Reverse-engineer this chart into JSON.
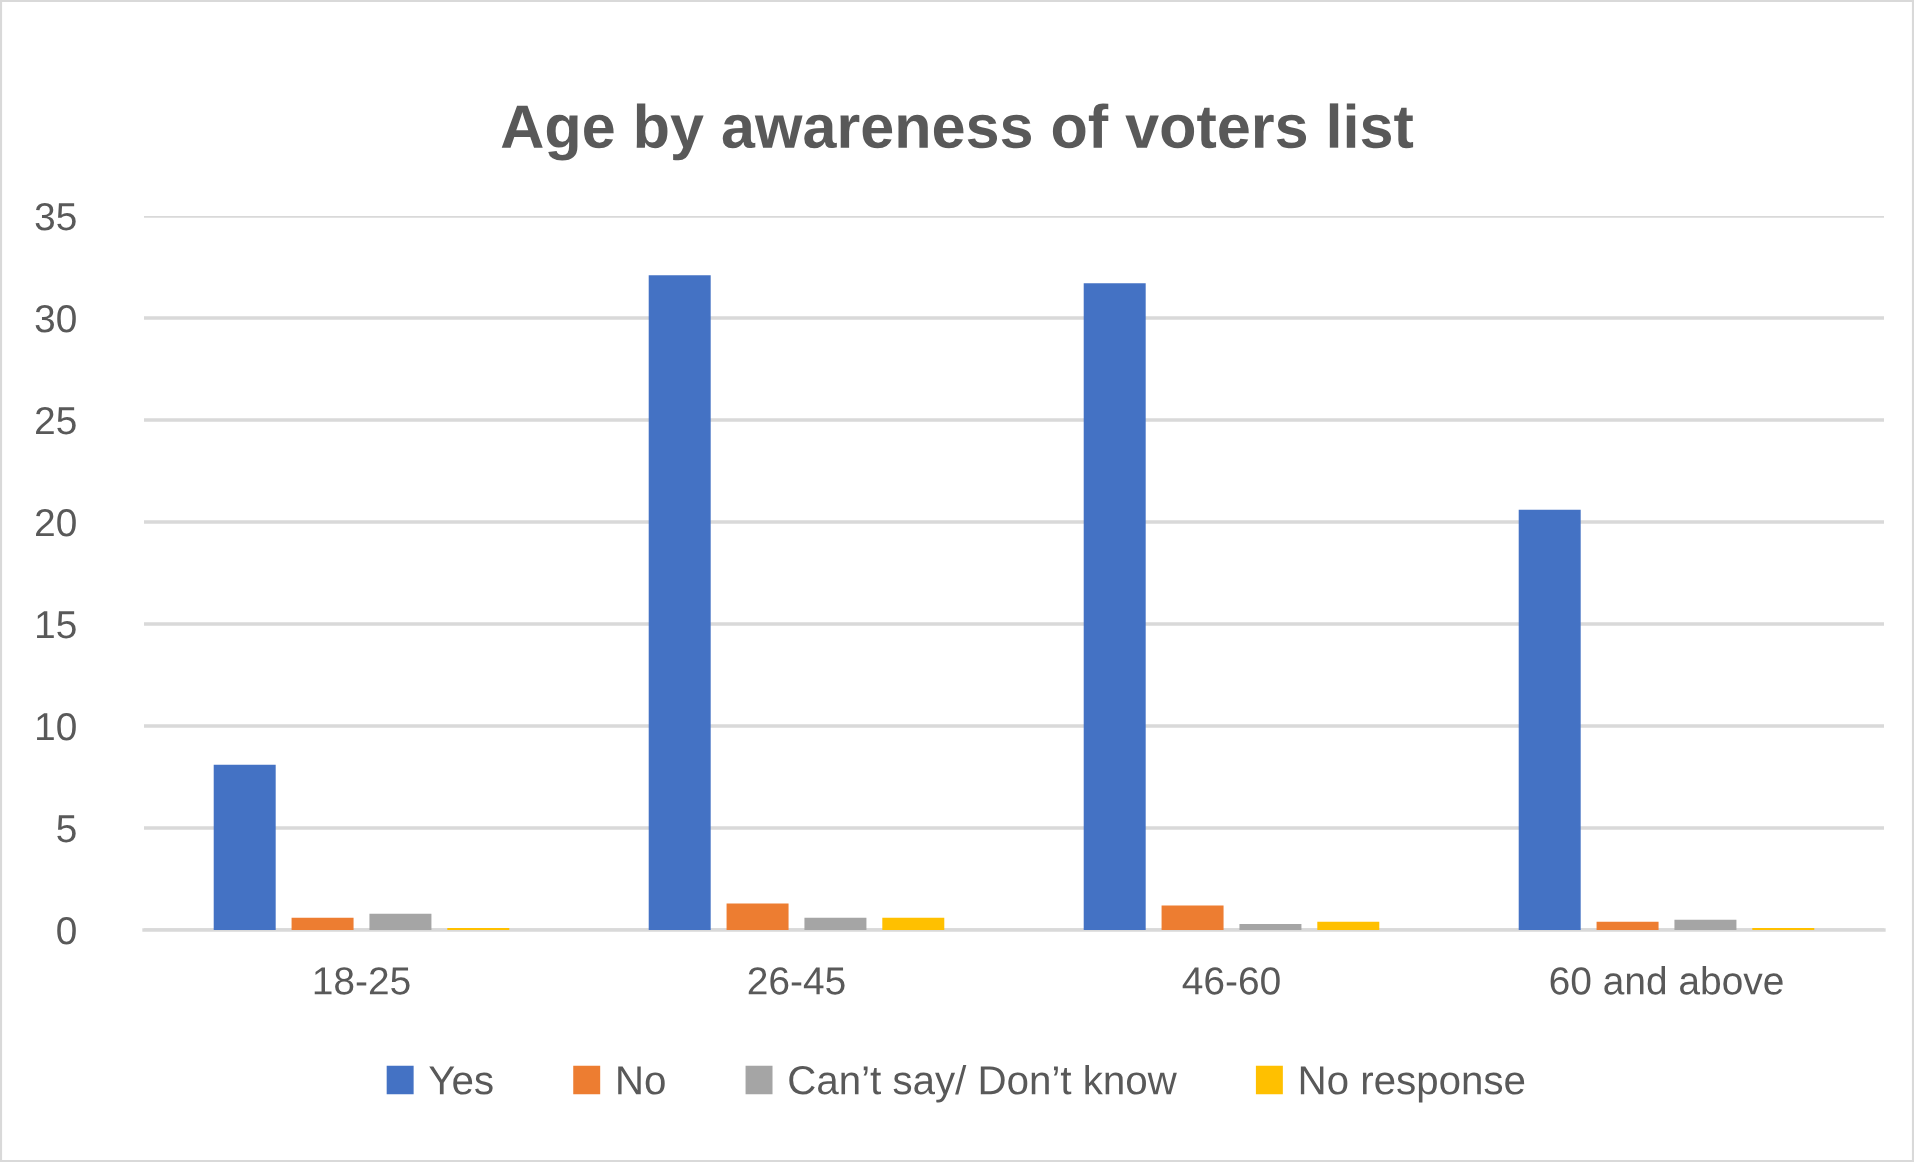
{
  "chart_data": {
    "type": "bar",
    "title": "Age by awareness of voters list",
    "categories": [
      "18-25",
      "26-45",
      "46-60",
      "60 and above"
    ],
    "series": [
      {
        "name": "Yes",
        "color": "#4472c4",
        "values": [
          8.1,
          32.1,
          31.7,
          20.6
        ]
      },
      {
        "name": "No",
        "color": "#ed7d31",
        "values": [
          0.6,
          1.3,
          1.2,
          0.4
        ]
      },
      {
        "name": "Can’t say/ Don’t know",
        "color": "#a5a5a5",
        "values": [
          0.8,
          0.6,
          0.3,
          0.5
        ]
      },
      {
        "name": "No response",
        "color": "#ffc000",
        "values": [
          0.1,
          0.6,
          0.4,
          0.1
        ]
      }
    ],
    "ylim": [
      0,
      35
    ],
    "yticks": [
      0,
      5,
      10,
      15,
      20,
      25,
      30,
      35
    ],
    "grid": "y",
    "legend": "bottom"
  }
}
